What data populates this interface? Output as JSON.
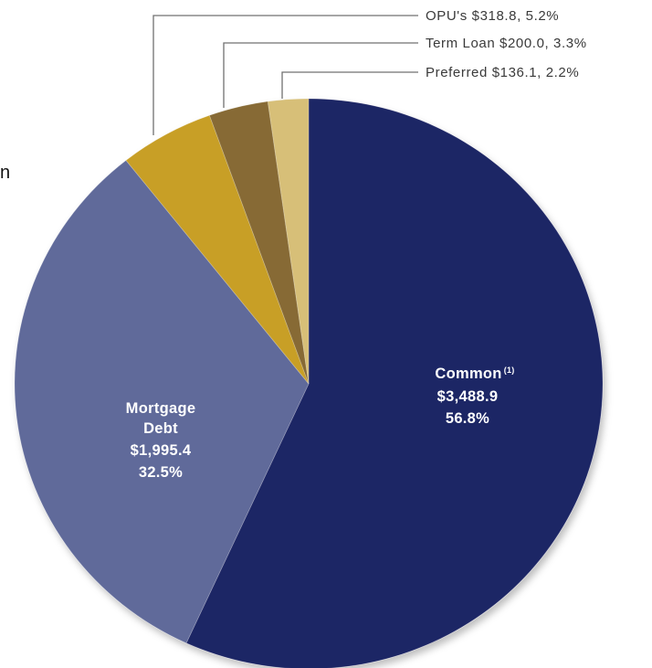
{
  "chart_data": {
    "type": "pie",
    "start_angle_deg": 0,
    "direction": "clockwise",
    "slices": [
      {
        "name": "Common",
        "footnote": "(1)",
        "value": 3488.9,
        "value_label": "$3,488.9",
        "percent_label": "56.8%",
        "color": "#1f2565",
        "label_position": "inside"
      },
      {
        "name": "Mortgage",
        "name_line2": "Debt",
        "value": 1995.4,
        "value_label": "$1,995.4",
        "percent_label": "32.5%",
        "color": "#616b9a",
        "label_position": "inside"
      },
      {
        "name": "OPU's",
        "value": 318.8,
        "external_label": "OPU's $318.8, 5.2%",
        "color": "#c89f28",
        "label_position": "outside"
      },
      {
        "name": "Term Loan",
        "value": 200.0,
        "external_label": "Term Loan $200.0, 3.3%",
        "color": "#876b35",
        "label_position": "outside"
      },
      {
        "name": "Preferred",
        "value": 136.1,
        "external_label": "Preferred $136.1, 2.2%",
        "color": "#d7bf78",
        "label_position": "outside"
      }
    ],
    "partial_text_left_edge": "n"
  }
}
